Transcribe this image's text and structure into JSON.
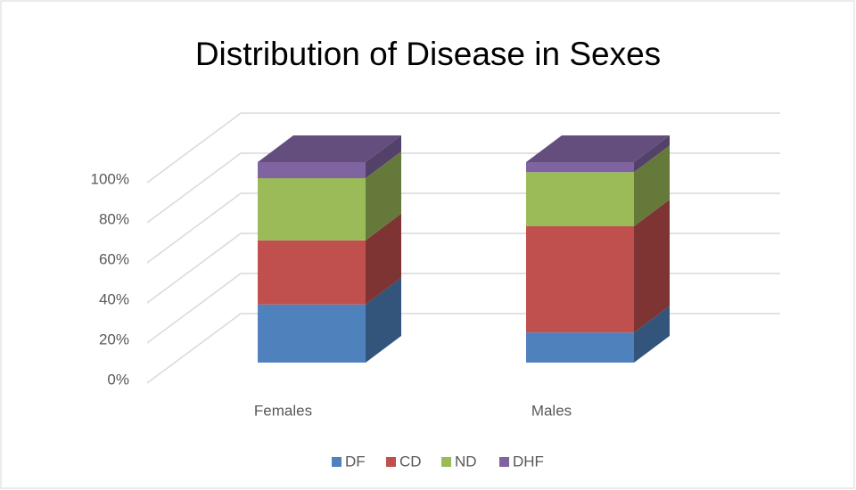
{
  "chart_data": {
    "type": "bar3d_stacked",
    "title": "Distribution of Disease in Sexes",
    "categories": [
      "Females",
      "Males"
    ],
    "series": [
      {
        "name": "DF",
        "color": "#4f81bd",
        "values": [
          29,
          15
        ]
      },
      {
        "name": "CD",
        "color": "#c0504d",
        "values": [
          32,
          53
        ]
      },
      {
        "name": "ND",
        "color": "#9bbb59",
        "values": [
          31,
          27
        ]
      },
      {
        "name": "DHF",
        "color": "#8064a2",
        "values": [
          8,
          5
        ]
      }
    ],
    "ylim": [
      0,
      100
    ],
    "yticks": [
      {
        "value": 0,
        "label": "0%"
      },
      {
        "value": 20,
        "label": "20%"
      },
      {
        "value": 40,
        "label": "40%"
      },
      {
        "value": 60,
        "label": "60%"
      },
      {
        "value": 80,
        "label": "80%"
      },
      {
        "value": 100,
        "label": "100%"
      }
    ],
    "grid": true,
    "legend": "bottom"
  }
}
